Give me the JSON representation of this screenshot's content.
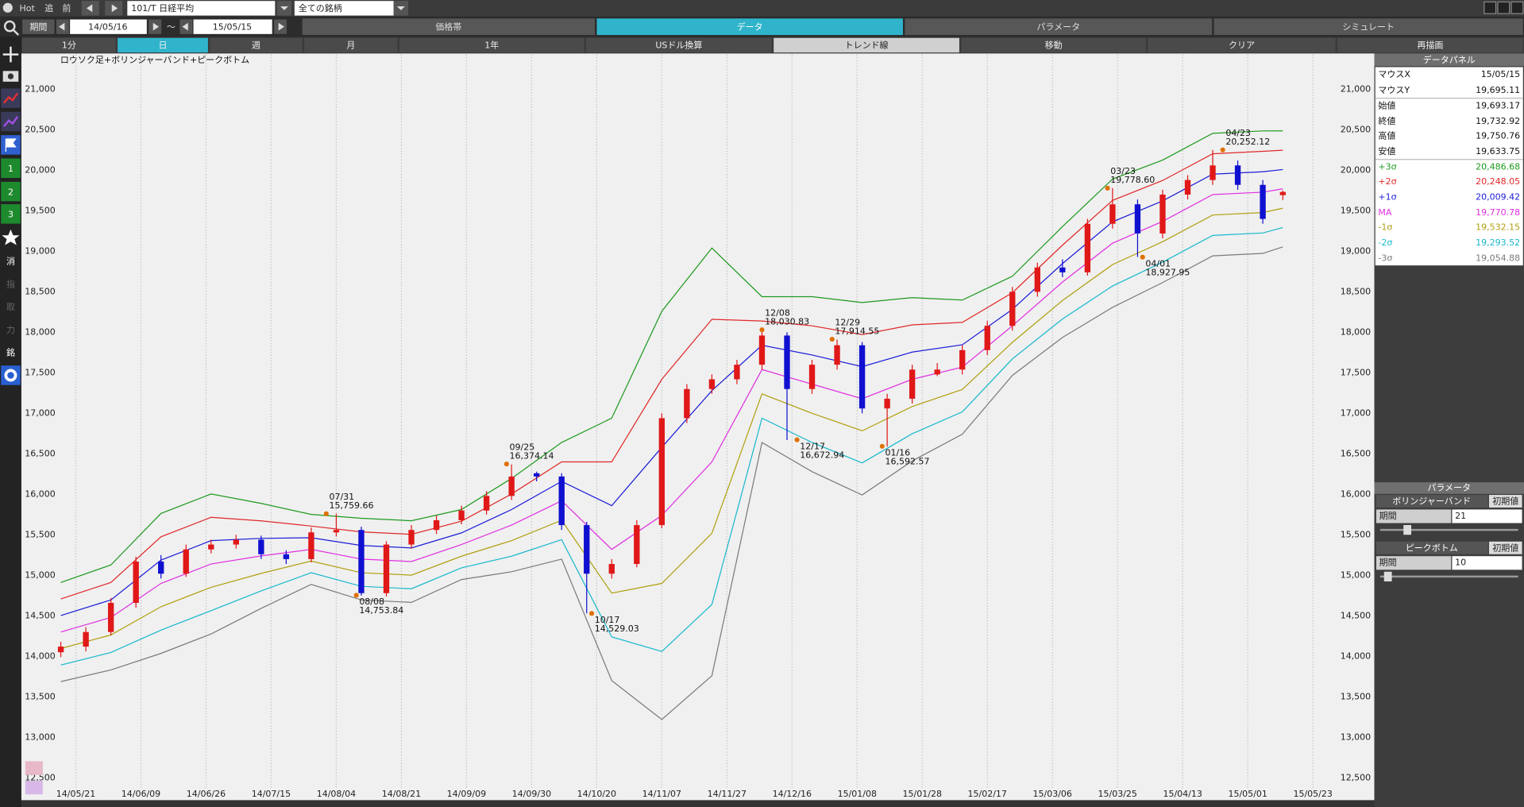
{
  "toolbar": {
    "hot": "Hot",
    "buttons": [
      "追",
      "前"
    ],
    "symbol": "101/T 日経平均",
    "filter": "全ての銘柄"
  },
  "period": {
    "label": "期間",
    "from": "14/05/16",
    "separator": "～",
    "to": "15/05/15"
  },
  "tabs": [
    "価格帯",
    "データ",
    "パラメータ",
    "シミュレート"
  ],
  "intervals": [
    "1分",
    "日",
    "週",
    "月",
    "1年"
  ],
  "tools": [
    "USドル換算",
    "トレンド線",
    "移動",
    "クリア",
    "再描画"
  ],
  "sidebar": [
    "1",
    "2",
    "3",
    "消",
    "指",
    "取",
    "力",
    "銘"
  ],
  "chart_data": {
    "type": "candlestick",
    "title": "ロウソク足+ボリンジャーバンド+ピークボトム",
    "xlim": [
      -0.5,
      254.7
    ],
    "xticks": [
      {
        "value": 3,
        "label": "14/05/21"
      },
      {
        "value": 16,
        "label": "14/06/09"
      },
      {
        "value": 29,
        "label": "14/06/26"
      },
      {
        "value": 42,
        "label": "14/07/15"
      },
      {
        "value": 55,
        "label": "14/08/04"
      },
      {
        "value": 68,
        "label": "14/08/21"
      },
      {
        "value": 81,
        "label": "14/09/09"
      },
      {
        "value": 94,
        "label": "14/09/30"
      },
      {
        "value": 107,
        "label": "14/10/20"
      },
      {
        "value": 120,
        "label": "14/11/07"
      },
      {
        "value": 133,
        "label": "14/11/27"
      },
      {
        "value": 146,
        "label": "14/12/16"
      },
      {
        "value": 159,
        "label": "15/01/08"
      },
      {
        "value": 172,
        "label": "15/01/28"
      },
      {
        "value": 185,
        "label": "15/02/17"
      },
      {
        "value": 198,
        "label": "15/03/06"
      },
      {
        "value": 211,
        "label": "15/03/25"
      },
      {
        "value": 224,
        "label": "15/04/13"
      },
      {
        "value": 237,
        "label": "15/05/01"
      },
      {
        "value": 250,
        "label": "15/05/23"
      }
    ],
    "ylim": [
      12380,
      21430
    ],
    "yticks": [
      {
        "value": 21000,
        "label": "21,000"
      },
      {
        "value": 20500,
        "label": "20,500"
      },
      {
        "value": 20000,
        "label": "20,000"
      },
      {
        "value": 19500,
        "label": "19,500"
      },
      {
        "value": 19000,
        "label": "19,000"
      },
      {
        "value": 18500,
        "label": "18,500"
      },
      {
        "value": 18000,
        "label": "18,000"
      },
      {
        "value": 17500,
        "label": "17,500"
      },
      {
        "value": 17000,
        "label": "17,000"
      },
      {
        "value": 16500,
        "label": "16,500"
      },
      {
        "value": 16000,
        "label": "16,000"
      },
      {
        "value": 15500,
        "label": "15,500"
      },
      {
        "value": 15000,
        "label": "15,000"
      },
      {
        "value": 14500,
        "label": "14,500"
      },
      {
        "value": 14000,
        "label": "14,000"
      },
      {
        "value": 13500,
        "label": "13,500"
      },
      {
        "value": 13000,
        "label": "13,000"
      },
      {
        "value": 12500,
        "label": "12,500"
      }
    ],
    "grid": "x",
    "up_color": "#e01818",
    "down_color": "#1010d0",
    "candles": {
      "x": [
        0,
        5,
        10,
        15,
        20,
        25,
        30,
        35,
        40,
        45,
        50,
        55,
        60,
        65,
        70,
        75,
        80,
        85,
        90,
        95,
        100,
        105,
        110,
        115,
        120,
        125,
        130,
        135,
        140,
        145,
        150,
        155,
        160,
        165,
        170,
        175,
        180,
        185,
        190,
        195,
        200,
        205,
        210,
        215,
        220,
        225,
        230,
        235,
        240,
        244
      ],
      "open": [
        14050,
        14120,
        14300,
        14660,
        15170,
        15020,
        15320,
        15380,
        15440,
        15260,
        15200,
        15530,
        15560,
        14780,
        15380,
        15560,
        15680,
        15800,
        15980,
        16260,
        16220,
        15620,
        15020,
        15140,
        15620,
        16940,
        17300,
        17420,
        17600,
        17960,
        17300,
        17600,
        17840,
        17060,
        17180,
        17480,
        17540,
        17780,
        18080,
        18500,
        18800,
        18740,
        19340,
        19580,
        19220,
        19700,
        19880,
        20060,
        19820,
        19693.17
      ],
      "high": [
        14180,
        14360,
        14720,
        15230,
        15250,
        15380,
        15440,
        15500,
        15490,
        15310,
        15590,
        15760,
        15600,
        15420,
        15620,
        15740,
        15860,
        16040,
        16370,
        16280,
        16260,
        15660,
        15200,
        15680,
        17000,
        17360,
        17480,
        17660,
        18030,
        18000,
        17660,
        17910,
        17880,
        17240,
        17600,
        17620,
        17840,
        18140,
        18560,
        18860,
        18900,
        19400,
        19780,
        19640,
        19760,
        19940,
        20250,
        20120,
        19880,
        19750.76
      ],
      "low": [
        13990,
        14060,
        14260,
        14600,
        14960,
        14980,
        15270,
        15330,
        15200,
        15140,
        15160,
        15480,
        14750,
        14740,
        15330,
        15510,
        15630,
        15750,
        15930,
        16160,
        15560,
        14530,
        14960,
        15100,
        15580,
        16880,
        17240,
        17360,
        17540,
        16670,
        17240,
        17540,
        17000,
        16590,
        17120,
        17460,
        17480,
        17720,
        18020,
        18440,
        18680,
        18700,
        19280,
        18930,
        19160,
        19640,
        19820,
        19760,
        19340,
        19633.75
      ],
      "close": [
        14120,
        14300,
        14660,
        15170,
        15020,
        15320,
        15380,
        15440,
        15260,
        15200,
        15530,
        15560,
        14780,
        15380,
        15560,
        15680,
        15800,
        15980,
        16220,
        16220,
        15620,
        15020,
        15140,
        15620,
        16940,
        17300,
        17420,
        17600,
        17960,
        17300,
        17600,
        17840,
        17060,
        17180,
        17540,
        17540,
        17780,
        18080,
        18500,
        18800,
        18740,
        19340,
        19580,
        19220,
        19700,
        19880,
        20060,
        19820,
        19400,
        19732.92
      ]
    },
    "band_x": [
      0,
      10,
      20,
      30,
      40,
      50,
      60,
      70,
      80,
      90,
      100,
      110,
      120,
      130,
      140,
      150,
      160,
      170,
      180,
      190,
      200,
      210,
      220,
      230,
      240,
      244
    ],
    "bands": [
      {
        "color": "#1e9a1e",
        "values": [
          14912,
          15128,
          15764,
          16004,
          15888,
          15752,
          15704,
          15674,
          15812,
          16196,
          16640,
          16940,
          18260,
          19040,
          18440,
          18440,
          18368,
          18428,
          18398,
          18692,
          19304,
          19892,
          20126,
          20456,
          20486,
          20486.68
        ]
      },
      {
        "color": "#e02828",
        "values": [
          14708,
          14912,
          15476,
          15716,
          15672,
          15608,
          15536,
          15506,
          15668,
          16004,
          16400,
          16400,
          17420,
          18160,
          18140,
          18080,
          17972,
          18092,
          18122,
          18488,
          19076,
          19628,
          19874,
          20204,
          20234,
          20248.05
        ]
      },
      {
        "color": "#1c1cd8",
        "values": [
          14504,
          14696,
          15188,
          15428,
          15456,
          15464,
          15368,
          15338,
          15524,
          15812,
          16160,
          15860,
          16580,
          17280,
          17840,
          17720,
          17576,
          17756,
          17846,
          18284,
          18848,
          19364,
          19622,
          19952,
          19982,
          20009.42
        ]
      },
      {
        "color": "#e030e0",
        "values": [
          14300,
          14480,
          14900,
          15140,
          15240,
          15320,
          15200,
          15170,
          15380,
          15620,
          15920,
          15320,
          15740,
          16400,
          17540,
          17360,
          17180,
          17420,
          17570,
          18080,
          18620,
          19100,
          19370,
          19700,
          19730,
          19770.78
        ]
      },
      {
        "color": "#b0a010",
        "values": [
          14096,
          14264,
          14612,
          14852,
          15024,
          15176,
          15032,
          15002,
          15236,
          15428,
          15680,
          14780,
          14900,
          15520,
          17240,
          17000,
          16784,
          17084,
          17294,
          17876,
          18392,
          18836,
          19118,
          19448,
          19478,
          19532.15
        ]
      },
      {
        "color": "#18b8cc",
        "values": [
          13892,
          14048,
          14324,
          14564,
          14808,
          15032,
          14864,
          14834,
          15092,
          15236,
          15440,
          14240,
          14060,
          14640,
          16940,
          16640,
          16388,
          16748,
          17018,
          17672,
          18164,
          18572,
          18866,
          19196,
          19226,
          19293.52
        ]
      },
      {
        "color": "#7a7a7a",
        "values": [
          13688,
          13832,
          14036,
          14276,
          14592,
          14888,
          14696,
          14666,
          14948,
          15044,
          15200,
          13700,
          13220,
          13760,
          16640,
          16280,
          15992,
          16412,
          16742,
          17468,
          17936,
          18308,
          18614,
          18944,
          18974,
          19054.88
        ]
      }
    ],
    "peak_color": "#e07000",
    "peaks": [
      {
        "date": "07/31",
        "value": 15759.66,
        "label": "15,759.66",
        "x": 53,
        "kind": "peak"
      },
      {
        "date": "08/08",
        "value": 14753.84,
        "label": "14,753.84",
        "x": 59,
        "kind": "bottom"
      },
      {
        "date": "09/25",
        "value": 16374.14,
        "label": "16,374.14",
        "x": 89,
        "kind": "peak"
      },
      {
        "date": "10/17",
        "value": 14529.03,
        "label": "14,529.03",
        "x": 106,
        "kind": "bottom"
      },
      {
        "date": "12/08",
        "value": 18030.83,
        "label": "18,030.83",
        "x": 140,
        "kind": "peak"
      },
      {
        "date": "12/17",
        "value": 16672.94,
        "label": "16,672.94",
        "x": 147,
        "kind": "bottom"
      },
      {
        "date": "12/29",
        "value": 17914.55,
        "label": "17,914.55",
        "x": 154,
        "kind": "peak"
      },
      {
        "date": "01/16",
        "value": 16592.57,
        "label": "16,592.57",
        "x": 164,
        "kind": "bottom"
      },
      {
        "date": "03/23",
        "value": 19778.6,
        "label": "19,778.60",
        "x": 209,
        "kind": "peak"
      },
      {
        "date": "04/01",
        "value": 18927.95,
        "label": "18,927.95",
        "x": 216,
        "kind": "bottom"
      },
      {
        "date": "04/23",
        "value": 20252.12,
        "label": "20,252.12",
        "x": 232,
        "kind": "peak"
      }
    ]
  },
  "data_panel": {
    "title": "データパネル",
    "rows": [
      {
        "label": "マウスX",
        "value": "15/05/15"
      },
      {
        "label": "マウスY",
        "value": "19,695.11"
      },
      {
        "label": "始値",
        "value": "19,693.17"
      },
      {
        "label": "終値",
        "value": "19,732.92"
      },
      {
        "label": "高値",
        "value": "19,750.76"
      },
      {
        "label": "安値",
        "value": "19,633.75"
      },
      {
        "label": "+3σ",
        "value": "20,486.68",
        "color": "#1e9a1e"
      },
      {
        "label": "+2σ",
        "value": "20,248.05",
        "color": "#e02828"
      },
      {
        "label": "+1σ",
        "value": "20,009.42",
        "color": "#1c1cd8"
      },
      {
        "label": "MA",
        "value": "19,770.78",
        "color": "#e030e0"
      },
      {
        "label": "-1σ",
        "value": "19,532.15",
        "color": "#b0a010"
      },
      {
        "label": "-2σ",
        "value": "19,293.52",
        "color": "#18b8cc"
      },
      {
        "label": "-3σ",
        "value": "19,054.88",
        "color": "#7a7a7a"
      }
    ]
  },
  "parameters": {
    "title": "パラメータ",
    "groups": [
      {
        "name": "ボリンジャーバンド",
        "reset": "初期値",
        "label": "期間",
        "value": "21"
      },
      {
        "name": "ピークボトム",
        "reset": "初期値",
        "label": "期間",
        "value": "10"
      }
    ]
  }
}
